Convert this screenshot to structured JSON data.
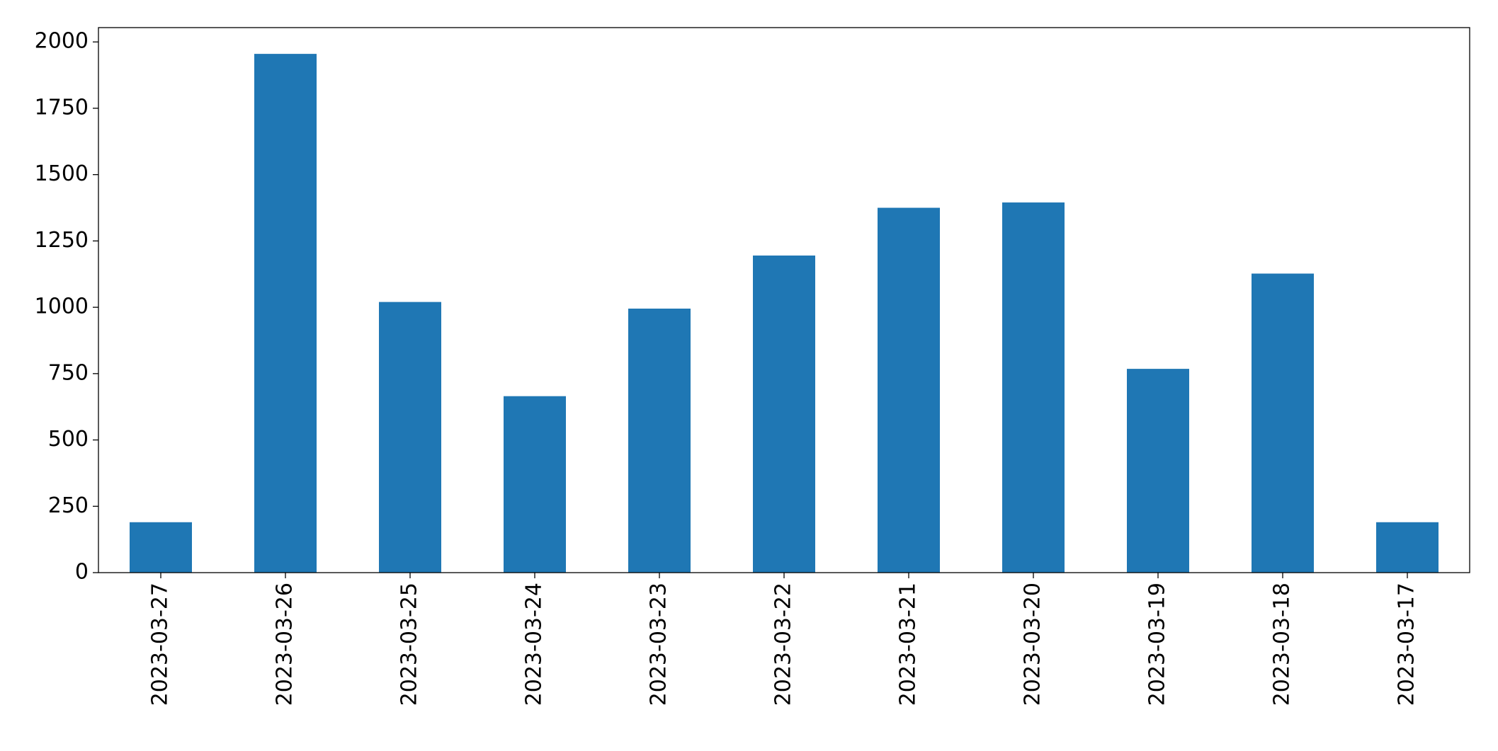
{
  "chart_data": {
    "type": "bar",
    "categories": [
      "2023-03-27",
      "2023-03-26",
      "2023-03-25",
      "2023-03-24",
      "2023-03-23",
      "2023-03-22",
      "2023-03-21",
      "2023-03-20",
      "2023-03-19",
      "2023-03-18",
      "2023-03-17"
    ],
    "values": [
      190,
      1955,
      1020,
      665,
      995,
      1195,
      1375,
      1395,
      768,
      1127,
      190
    ],
    "color": "#1f77b4",
    "ylim": [
      0,
      2054
    ],
    "yticks": [
      0,
      250,
      500,
      750,
      1000,
      1250,
      1500,
      1750,
      2000
    ],
    "grid": false
  }
}
